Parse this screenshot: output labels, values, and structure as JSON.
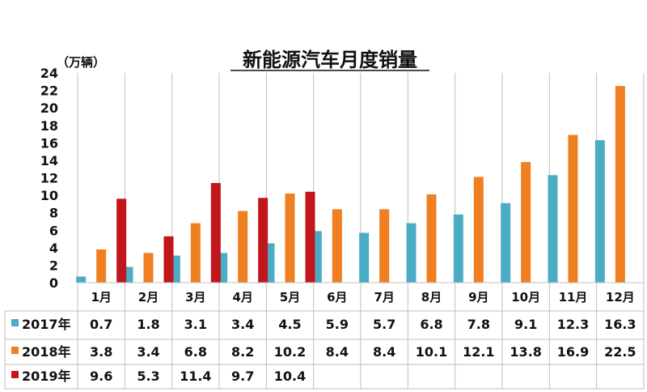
{
  "chart_data": {
    "type": "bar",
    "title": "新能源汽车月度销量",
    "ylabel": "（万辆）",
    "ylim": [
      0,
      24
    ],
    "yticks": [
      0,
      2,
      4,
      6,
      8,
      10,
      12,
      14,
      16,
      18,
      20,
      22,
      24
    ],
    "grid": "vertical separators",
    "legend": "table-left",
    "categories": [
      "1月",
      "2月",
      "3月",
      "4月",
      "5月",
      "6月",
      "7月",
      "8月",
      "9月",
      "10月",
      "11月",
      "12月"
    ],
    "series": [
      {
        "name": "2017年",
        "color": "#4bacc6",
        "values": [
          0.7,
          1.8,
          3.1,
          3.4,
          4.5,
          5.9,
          5.7,
          6.8,
          7.8,
          9.1,
          12.3,
          16.3
        ],
        "labels": [
          "0.7",
          "1.8",
          "3.1",
          "3.4",
          "4.5",
          "5.9",
          "5.7",
          "6.8",
          "7.8",
          "9.1",
          "12.3",
          "16.3"
        ]
      },
      {
        "name": "2018年",
        "color": "#f07f21",
        "values": [
          3.8,
          3.4,
          6.8,
          8.2,
          10.2,
          8.4,
          8.4,
          10.1,
          12.1,
          13.8,
          16.9,
          22.5
        ],
        "labels": [
          "3.8",
          "3.4",
          "6.8",
          "8.2",
          "10.2",
          "8.4",
          "8.4",
          "10.1",
          "12.1",
          "13.8",
          "16.9",
          "22.5"
        ]
      },
      {
        "name": "2019年",
        "color": "#c0161c",
        "values": [
          9.6,
          5.3,
          11.4,
          9.7,
          10.4,
          null,
          null,
          null,
          null,
          null,
          null,
          null
        ],
        "labels": [
          "9.6",
          "5.3",
          "11.4",
          "9.7",
          "10.4",
          "",
          "",
          "",
          "",
          "",
          "",
          ""
        ]
      }
    ]
  }
}
